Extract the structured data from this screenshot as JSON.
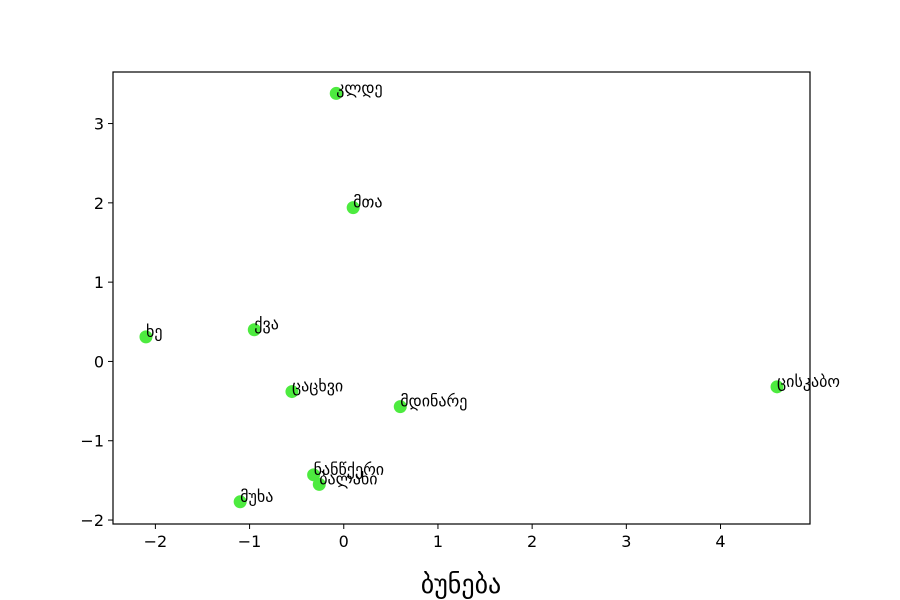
{
  "chart_data": {
    "type": "scatter",
    "title": "",
    "xlabel": "ბუნება",
    "ylabel": "",
    "xlim": [
      -2.45,
      4.95
    ],
    "ylim": [
      -2.05,
      3.65
    ],
    "xticks": [
      -2,
      -1,
      0,
      1,
      2,
      3,
      4
    ],
    "yticks": [
      -2,
      -1,
      0,
      1,
      2,
      3
    ],
    "grid": false,
    "legend": "none",
    "marker_color": "#4deb3f",
    "points": [
      {
        "label": "კლდე",
        "x": -0.08,
        "y": 3.38
      },
      {
        "label": "მთა",
        "x": 0.1,
        "y": 1.94
      },
      {
        "label": "ქვა",
        "x": -0.95,
        "y": 0.4
      },
      {
        "label": "ხე",
        "x": -2.1,
        "y": 0.31
      },
      {
        "label": "ცაცხვი",
        "x": -0.55,
        "y": -0.38
      },
      {
        "label": "მდინარე",
        "x": 0.6,
        "y": -0.57
      },
      {
        "label": "ცისკაბო",
        "x": 4.6,
        "y": -0.32
      },
      {
        "label": "ნანწქერი",
        "x": -0.32,
        "y": -1.43
      },
      {
        "label": "ბალახი",
        "x": -0.26,
        "y": -1.55
      },
      {
        "label": "მუხა",
        "x": -1.1,
        "y": -1.77
      }
    ]
  }
}
